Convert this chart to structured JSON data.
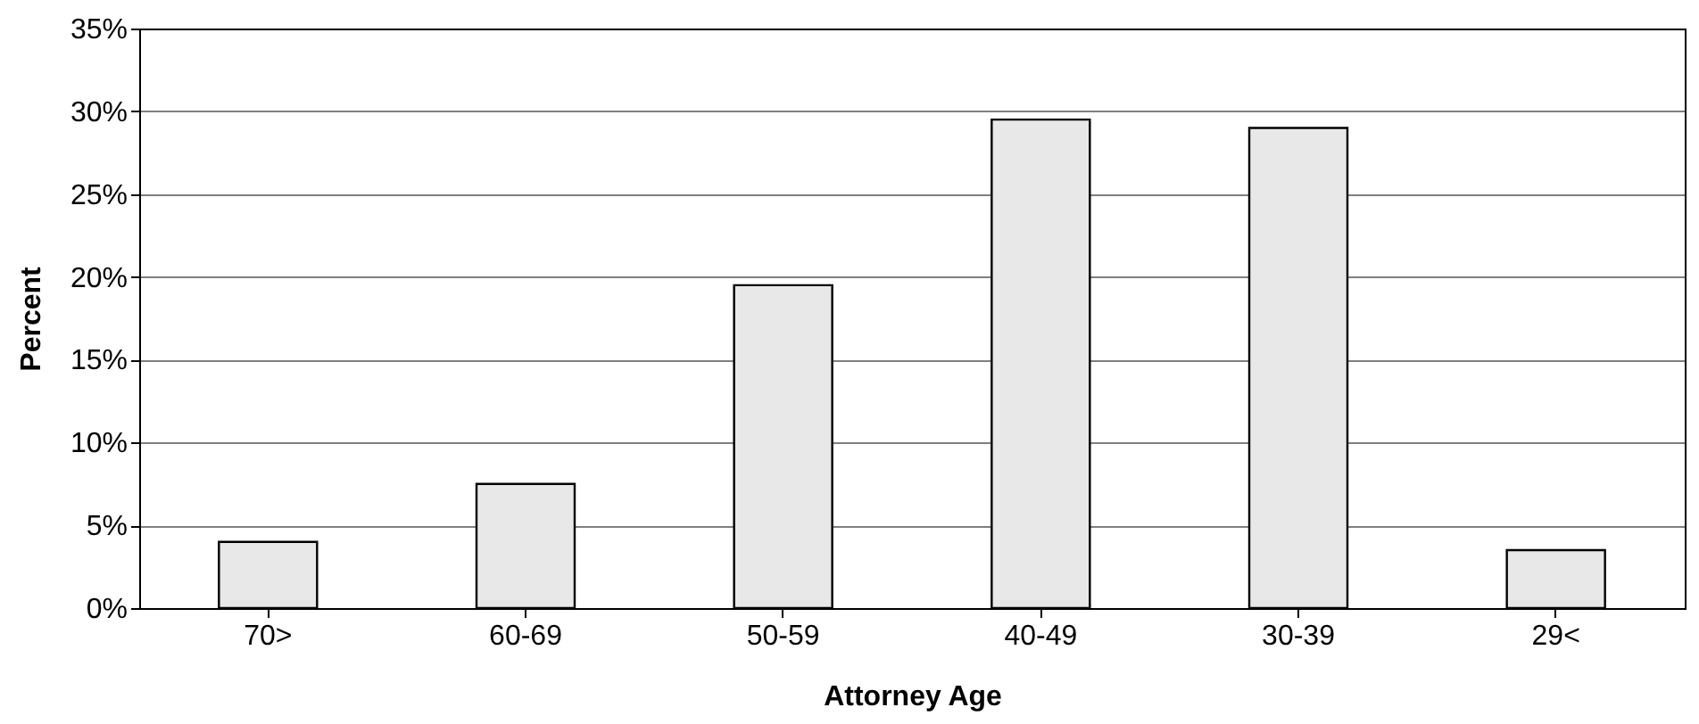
{
  "chart_data": {
    "type": "bar",
    "xlabel": "Attorney Age",
    "ylabel": "Percent",
    "categories": [
      "70>",
      "60-69",
      "50-59",
      "40-49",
      "30-39",
      "29<"
    ],
    "values": [
      4,
      7.5,
      19.5,
      29.5,
      29,
      3.5
    ],
    "color": "#e8e8e8",
    "ylim": [
      0,
      35
    ],
    "yticks": [
      {
        "value": 0,
        "label": "0%"
      },
      {
        "value": 5,
        "label": "5%"
      },
      {
        "value": 10,
        "label": "10%"
      },
      {
        "value": 15,
        "label": "15%"
      },
      {
        "value": 20,
        "label": "20%"
      },
      {
        "value": 25,
        "label": "25%"
      },
      {
        "value": 30,
        "label": "30%"
      },
      {
        "value": 35,
        "label": "35%"
      }
    ],
    "grid": "y"
  }
}
